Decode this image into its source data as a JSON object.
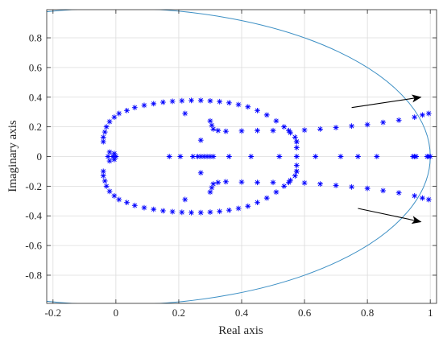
{
  "chart_data": {
    "type": "scatter",
    "xlabel": "Real axis",
    "ylabel": "Imaginary axis",
    "xlim": [
      -0.22,
      1.02
    ],
    "ylim": [
      -0.99,
      0.99
    ],
    "xticks": [
      -0.2,
      0,
      0.2,
      0.4,
      0.6,
      0.8,
      1
    ],
    "xtick_labels": [
      "-0.2",
      "0",
      "0.2",
      "0.4",
      "0.6",
      "0.8",
      "1"
    ],
    "yticks": [
      -0.8,
      -0.6,
      -0.4,
      -0.2,
      0,
      0.2,
      0.4,
      0.6,
      0.8
    ],
    "ytick_labels": [
      "-0.8",
      "-0.6",
      "-0.4",
      "-0.2",
      "0",
      "0.2",
      "0.4",
      "0.6",
      "0.8"
    ],
    "grid": true,
    "marker": "asterisk",
    "marker_color": "#0000ff",
    "unit_circle_color": "#3c8fc4",
    "arrow_color": "#000000",
    "unit_circle": {
      "center": [
        0,
        0
      ],
      "radius": 1
    },
    "series": [
      {
        "points": [
          [
            0.575,
            0.06
          ],
          [
            0.575,
            0.1
          ],
          [
            0.57,
            0.13
          ],
          [
            0.555,
            0.16
          ],
          [
            0.535,
            0.2
          ],
          [
            0.51,
            0.24
          ],
          [
            0.48,
            0.28
          ],
          [
            0.45,
            0.31
          ],
          [
            0.42,
            0.335
          ],
          [
            0.39,
            0.35
          ],
          [
            0.36,
            0.362
          ],
          [
            0.33,
            0.37
          ],
          [
            0.3,
            0.375
          ],
          [
            0.27,
            0.378
          ],
          [
            0.24,
            0.378
          ],
          [
            0.21,
            0.376
          ],
          [
            0.18,
            0.372
          ],
          [
            0.15,
            0.366
          ],
          [
            0.12,
            0.356
          ],
          [
            0.09,
            0.345
          ],
          [
            0.06,
            0.33
          ],
          [
            0.035,
            0.31
          ],
          [
            0.01,
            0.29
          ],
          [
            -0.005,
            0.265
          ],
          [
            -0.02,
            0.235
          ],
          [
            -0.03,
            0.2
          ],
          [
            -0.035,
            0.165
          ],
          [
            -0.04,
            0.13
          ],
          [
            -0.04,
            0.1
          ],
          [
            0.575,
            -0.06
          ],
          [
            0.575,
            -0.1
          ],
          [
            0.57,
            -0.13
          ],
          [
            0.555,
            -0.16
          ],
          [
            0.535,
            -0.2
          ],
          [
            0.51,
            -0.24
          ],
          [
            0.48,
            -0.28
          ],
          [
            0.45,
            -0.31
          ],
          [
            0.42,
            -0.335
          ],
          [
            0.39,
            -0.35
          ],
          [
            0.36,
            -0.362
          ],
          [
            0.33,
            -0.37
          ],
          [
            0.3,
            -0.375
          ],
          [
            0.27,
            -0.378
          ],
          [
            0.24,
            -0.378
          ],
          [
            0.21,
            -0.376
          ],
          [
            0.18,
            -0.372
          ],
          [
            0.15,
            -0.366
          ],
          [
            0.12,
            -0.356
          ],
          [
            0.09,
            -0.345
          ],
          [
            0.06,
            -0.33
          ],
          [
            0.035,
            -0.31
          ],
          [
            0.01,
            -0.29
          ],
          [
            -0.005,
            -0.265
          ],
          [
            -0.02,
            -0.235
          ],
          [
            -0.03,
            -0.2
          ],
          [
            -0.035,
            -0.165
          ],
          [
            -0.04,
            -0.13
          ],
          [
            -0.04,
            -0.1
          ],
          [
            0.3,
            0.24
          ],
          [
            0.305,
            0.21
          ],
          [
            0.31,
            0.185
          ],
          [
            0.325,
            0.175
          ],
          [
            0.35,
            0.17
          ],
          [
            0.4,
            0.172
          ],
          [
            0.45,
            0.175
          ],
          [
            0.5,
            0.175
          ],
          [
            0.55,
            0.175
          ],
          [
            0.6,
            0.178
          ],
          [
            0.65,
            0.185
          ],
          [
            0.7,
            0.195
          ],
          [
            0.75,
            0.205
          ],
          [
            0.8,
            0.215
          ],
          [
            0.85,
            0.23
          ],
          [
            0.9,
            0.245
          ],
          [
            0.95,
            0.265
          ],
          [
            0.975,
            0.28
          ],
          [
            0.995,
            0.29
          ],
          [
            0.3,
            -0.24
          ],
          [
            0.305,
            -0.21
          ],
          [
            0.31,
            -0.185
          ],
          [
            0.325,
            -0.175
          ],
          [
            0.35,
            -0.17
          ],
          [
            0.4,
            -0.172
          ],
          [
            0.45,
            -0.175
          ],
          [
            0.5,
            -0.175
          ],
          [
            0.55,
            -0.175
          ],
          [
            0.6,
            -0.178
          ],
          [
            0.65,
            -0.185
          ],
          [
            0.7,
            -0.195
          ],
          [
            0.75,
            -0.205
          ],
          [
            0.8,
            -0.215
          ],
          [
            0.85,
            -0.23
          ],
          [
            0.9,
            -0.245
          ],
          [
            0.95,
            -0.265
          ],
          [
            0.975,
            -0.28
          ],
          [
            0.995,
            -0.29
          ],
          [
            0.22,
            0.29
          ],
          [
            0.22,
            -0.29
          ],
          [
            0.575,
            0.1
          ],
          [
            0.575,
            -0.1
          ],
          [
            0.27,
            0.11
          ],
          [
            0.27,
            -0.11
          ],
          [
            -0.025,
            0.0
          ],
          [
            -0.02,
            0.03
          ],
          [
            -0.02,
            -0.03
          ],
          [
            -0.01,
            0.0
          ],
          [
            -0.005,
            0.02
          ],
          [
            -0.005,
            -0.02
          ],
          [
            0.0,
            0.0
          ],
          [
            0.17,
            0.0
          ],
          [
            0.205,
            0.0
          ],
          [
            0.245,
            0.0
          ],
          [
            0.26,
            0.0
          ],
          [
            0.27,
            0.0
          ],
          [
            0.28,
            0.0
          ],
          [
            0.29,
            0.0
          ],
          [
            0.3,
            0.0
          ],
          [
            0.31,
            0.0
          ],
          [
            0.36,
            0.0
          ],
          [
            0.43,
            0.0
          ],
          [
            0.52,
            0.0
          ],
          [
            0.575,
            0.0
          ],
          [
            0.635,
            0.0
          ],
          [
            0.715,
            0.0
          ],
          [
            0.77,
            0.0
          ],
          [
            0.83,
            0.0
          ],
          [
            0.945,
            0.0
          ],
          [
            0.95,
            0.0
          ],
          [
            0.955,
            0.0
          ],
          [
            0.99,
            0.0
          ],
          [
            0.995,
            0.0
          ],
          [
            1.0,
            0.0
          ]
        ]
      }
    ],
    "annotations": [
      {
        "type": "arrow",
        "from": [
          0.75,
          0.33
        ],
        "to": [
          0.97,
          0.4
        ]
      },
      {
        "type": "arrow",
        "from": [
          0.77,
          -0.35
        ],
        "to": [
          0.97,
          -0.44
        ]
      }
    ]
  }
}
